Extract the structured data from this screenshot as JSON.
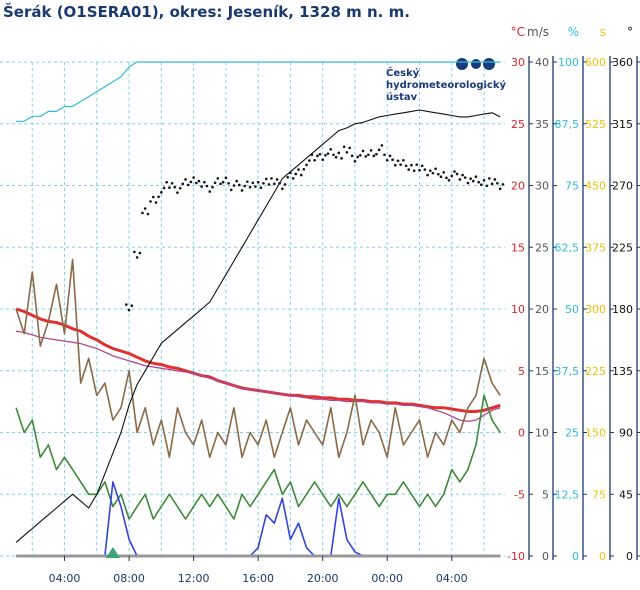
{
  "title": "Šerák (O1SERA01), okres: Jeseník, 1328 m n. m.",
  "logo": {
    "lines": [
      "Český",
      "hydrometeorologický",
      "ústav"
    ],
    "color": "#1a3a7c"
  },
  "chart_data": {
    "type": "line",
    "grid": true,
    "x_ticks": [
      "04:00",
      "08:00",
      "12:00",
      "16:00",
      "20:00",
      "00:00",
      "04:00"
    ],
    "axes": [
      {
        "unit": "°C",
        "color": "#d62728",
        "ticks": [
          "30",
          "25",
          "20",
          "15",
          "10",
          "5",
          "0",
          "-5",
          "-10"
        ],
        "range": [
          -10,
          30
        ]
      },
      {
        "unit": "m/s",
        "color": "#555555",
        "ticks": [
          "40",
          "35",
          "30",
          "25",
          "20",
          "15",
          "10",
          "5",
          "0"
        ],
        "range": [
          0,
          40
        ]
      },
      {
        "unit": "%",
        "color": "#33bbd9",
        "ticks": [
          "100",
          "87,5",
          "75",
          "62,5",
          "50",
          "37,5",
          "25",
          "12,5",
          "0"
        ],
        "range": [
          0,
          100
        ]
      },
      {
        "unit": "s",
        "color": "#f0c20a",
        "ticks": [
          "600",
          "525",
          "450",
          "375",
          "300",
          "225",
          "150",
          "75",
          "0"
        ],
        "range": [
          0,
          600
        ]
      },
      {
        "unit": "°",
        "color": "#111111",
        "ticks": [
          "360",
          "315",
          "270",
          "225",
          "180",
          "135",
          "90",
          "45",
          "0"
        ],
        "range": [
          0,
          360
        ]
      }
    ],
    "time_hours": [
      1,
      1.5,
      2,
      2.5,
      3,
      3.5,
      4,
      4.5,
      5,
      5.5,
      6,
      6.5,
      7,
      7.5,
      8,
      8.5,
      9,
      9.5,
      10,
      10.5,
      11,
      11.5,
      12,
      12.5,
      13,
      13.5,
      14,
      14.5,
      15,
      15.5,
      16,
      16.5,
      17,
      17.5,
      18,
      18.5,
      19,
      19.5,
      20,
      20.5,
      21,
      21.5,
      22,
      22.5,
      23,
      23.5,
      24,
      24.5,
      25,
      25.5,
      26,
      26.5,
      27,
      27.5,
      28,
      28.5,
      29,
      29.5,
      30,
      30.5,
      31
    ],
    "series": [
      {
        "key": "temperature",
        "color": "#e03030",
        "width": 3,
        "unit": "°C",
        "values": [
          10,
          9.8,
          9.5,
          9.2,
          9,
          8.9,
          8.7,
          8.4,
          8.2,
          7.8,
          7.5,
          7.1,
          6.8,
          6.6,
          6.4,
          6.1,
          5.8,
          5.6,
          5.5,
          5.3,
          5.2,
          5,
          4.8,
          4.6,
          4.5,
          4.2,
          4,
          3.8,
          3.6,
          3.5,
          3.4,
          3.3,
          3.2,
          3.1,
          3,
          3,
          2.9,
          2.9,
          2.8,
          2.8,
          2.7,
          2.7,
          2.6,
          2.6,
          2.5,
          2.5,
          2.4,
          2.4,
          2.3,
          2.3,
          2.2,
          2.1,
          2,
          2,
          1.9,
          1.8,
          1.7,
          1.7,
          1.8,
          2,
          2.2
        ]
      },
      {
        "key": "dewpoint",
        "color": "#b04890",
        "width": 1.3,
        "unit": "°C",
        "values": [
          8.2,
          8.1,
          7.9,
          7.7,
          7.6,
          7.5,
          7.4,
          7.3,
          7.2,
          7,
          6.8,
          6.5,
          6.2,
          6,
          5.8,
          5.6,
          5.4,
          5.3,
          5.2,
          5.1,
          5,
          4.9,
          4.8,
          4.6,
          4.4,
          4.2,
          4,
          3.8,
          3.6,
          3.5,
          3.4,
          3.3,
          3.2,
          3.1,
          3,
          2.9,
          2.8,
          2.7,
          2.7,
          2.6,
          2.6,
          2.5,
          2.5,
          2.5,
          2.4,
          2.4,
          2.3,
          2.3,
          2.2,
          2.2,
          2.1,
          2,
          1.8,
          1.6,
          1.3,
          1,
          0.9,
          1,
          1.4,
          1.8,
          2
        ]
      },
      {
        "key": "wind_gust",
        "color": "#8b6a48",
        "width": 1.6,
        "unit": "m/s",
        "values": [
          20,
          18,
          23,
          17,
          19,
          22,
          18,
          24,
          14,
          16,
          13,
          14,
          11,
          12,
          15,
          10,
          12,
          9,
          11,
          8,
          12,
          10,
          9,
          11,
          8,
          10,
          9,
          12,
          8,
          10,
          9,
          11,
          8,
          10,
          12,
          9,
          11,
          10,
          9,
          12,
          8,
          10,
          13,
          9,
          11,
          10,
          8,
          12,
          9,
          10,
          11,
          8,
          10,
          9,
          11,
          10,
          12,
          13,
          16,
          14,
          13
        ]
      },
      {
        "key": "wind_speed",
        "color": "#3f8a3a",
        "width": 1.6,
        "unit": "m/s",
        "values": [
          12,
          10,
          11,
          8,
          9,
          7,
          8,
          7,
          6,
          5,
          5,
          6,
          4,
          5,
          3,
          4,
          5,
          3,
          4,
          5,
          4,
          3,
          4,
          5,
          4,
          5,
          4,
          3,
          5,
          4,
          5,
          6,
          7,
          5,
          6,
          4,
          5,
          6,
          5,
          4,
          5,
          4,
          5,
          6,
          5,
          4,
          5,
          5,
          6,
          5,
          4,
          5,
          4,
          5,
          7,
          6,
          7,
          9,
          13,
          11,
          10
        ]
      },
      {
        "key": "humidity",
        "color": "#33bbd9",
        "width": 1.2,
        "unit": "%",
        "values": [
          88,
          88,
          89,
          89,
          90,
          90,
          91,
          91,
          92,
          93,
          94,
          95,
          96,
          97,
          99,
          100,
          100,
          100,
          100,
          100,
          100,
          100,
          100,
          100,
          100,
          100,
          100,
          100,
          100,
          100,
          100,
          100,
          100,
          100,
          100,
          100,
          100,
          100,
          100,
          100,
          100,
          100,
          100,
          100,
          100,
          100,
          100,
          100,
          100,
          100,
          100,
          100,
          100,
          100,
          100,
          100,
          100,
          100,
          100,
          100,
          100
        ]
      },
      {
        "key": "sunshine",
        "color": "#3344dd",
        "width": 1.6,
        "unit": "s",
        "values": [
          0,
          0,
          0,
          0,
          0,
          0,
          0,
          0,
          0,
          0,
          0,
          0,
          90,
          60,
          20,
          0,
          0,
          0,
          0,
          0,
          0,
          0,
          0,
          0,
          0,
          0,
          0,
          0,
          0,
          0,
          10,
          50,
          40,
          70,
          20,
          40,
          10,
          0,
          0,
          0,
          70,
          20,
          5,
          0,
          0,
          0,
          0,
          0,
          0,
          0,
          0,
          0,
          0,
          0,
          0,
          0,
          0,
          0,
          0,
          0,
          0
        ]
      },
      {
        "key": "sunshine_track",
        "color": "#999999",
        "width": 3,
        "unit": "s",
        "values": [
          0,
          0,
          0,
          0,
          0,
          0,
          0,
          0,
          0,
          0,
          0,
          0,
          0,
          0,
          0,
          0,
          0,
          0,
          0,
          0,
          0,
          0,
          0,
          0,
          0,
          0,
          0,
          0,
          0,
          0,
          0,
          0,
          0,
          0,
          0,
          0,
          0,
          0,
          0,
          0,
          0,
          0,
          0,
          0,
          0,
          0,
          0,
          0,
          0,
          0,
          0,
          0,
          0,
          0,
          0,
          0,
          0,
          0,
          0,
          0,
          0
        ]
      },
      {
        "key": "direction_line",
        "color": "#111111",
        "width": 1.1,
        "unit": "°",
        "values": [
          10,
          15,
          20,
          25,
          30,
          35,
          40,
          45,
          40,
          35,
          45,
          60,
          75,
          90,
          110,
          125,
          135,
          145,
          155,
          160,
          165,
          170,
          175,
          180,
          185,
          195,
          205,
          215,
          225,
          235,
          245,
          255,
          265,
          275,
          280,
          285,
          290,
          295,
          300,
          305,
          310,
          312,
          315,
          316,
          318,
          320,
          321,
          322,
          323,
          324,
          325,
          324,
          323,
          322,
          321,
          320,
          320,
          321,
          322,
          323,
          320
        ]
      },
      {
        "key": "direction_points",
        "color": "#111111",
        "width": 0,
        "unit": "°",
        "values": [
          null,
          null,
          null,
          null,
          null,
          null,
          null,
          null,
          null,
          null,
          null,
          null,
          null,
          null,
          180,
          220,
          250,
          260,
          265,
          270,
          268,
          272,
          275,
          270,
          268,
          272,
          274,
          270,
          268,
          272,
          270,
          274,
          272,
          270,
          276,
          280,
          285,
          290,
          292,
          294,
          293,
          295,
          290,
          292,
          294,
          296,
          290,
          288,
          286,
          284,
          282,
          280,
          279,
          278,
          277,
          276,
          275,
          274,
          273,
          272,
          270
        ]
      }
    ],
    "events": [
      {
        "hour": 7,
        "value": 0,
        "unit": "s",
        "marker": "triangle",
        "color": "#3aa57a"
      }
    ]
  }
}
